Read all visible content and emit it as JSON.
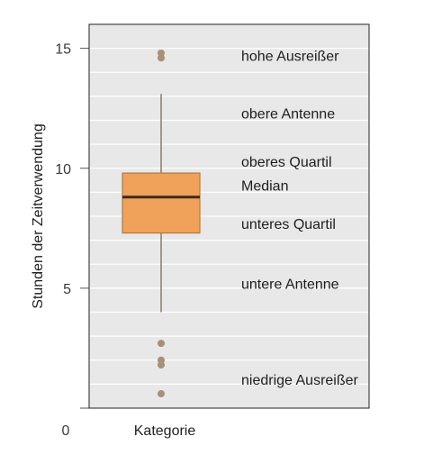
{
  "chart_data": {
    "type": "box",
    "ylabel": "Stunden der Zeitverwendung",
    "xlabel": "",
    "categories": [
      "Kategorie"
    ],
    "origin_label": "0",
    "ylim": [
      0,
      16
    ],
    "yticks": [
      5,
      10,
      15
    ],
    "grid": true,
    "box": {
      "whisker_low": 4.0,
      "q1": 7.3,
      "median": 8.8,
      "q3": 9.8,
      "whisker_high": 13.1
    },
    "outliers": [
      14.8,
      14.6,
      2.7,
      2.0,
      1.8,
      0.6
    ],
    "annotations": [
      {
        "text": "hohe Ausreißer",
        "y": 14.7
      },
      {
        "text": "obere Antenne",
        "y": 12.3
      },
      {
        "text": "oberes Quartil",
        "y": 10.3
      },
      {
        "text": "Median",
        "y": 9.3
      },
      {
        "text": "unteres Quartil",
        "y": 7.7
      },
      {
        "text": "untere Antenne",
        "y": 5.2
      },
      {
        "text": "niedrige Ausreißer",
        "y": 1.2
      }
    ],
    "colors": {
      "plot_bg": "#e8e8e8",
      "grid": "#ffffff",
      "box_fill": "#f0a15a",
      "box_stroke": "#b07a45",
      "median": "#3b2a1f",
      "whisker": "#8a7a66",
      "outlier": "#a88f78",
      "frame": "#222222"
    }
  }
}
